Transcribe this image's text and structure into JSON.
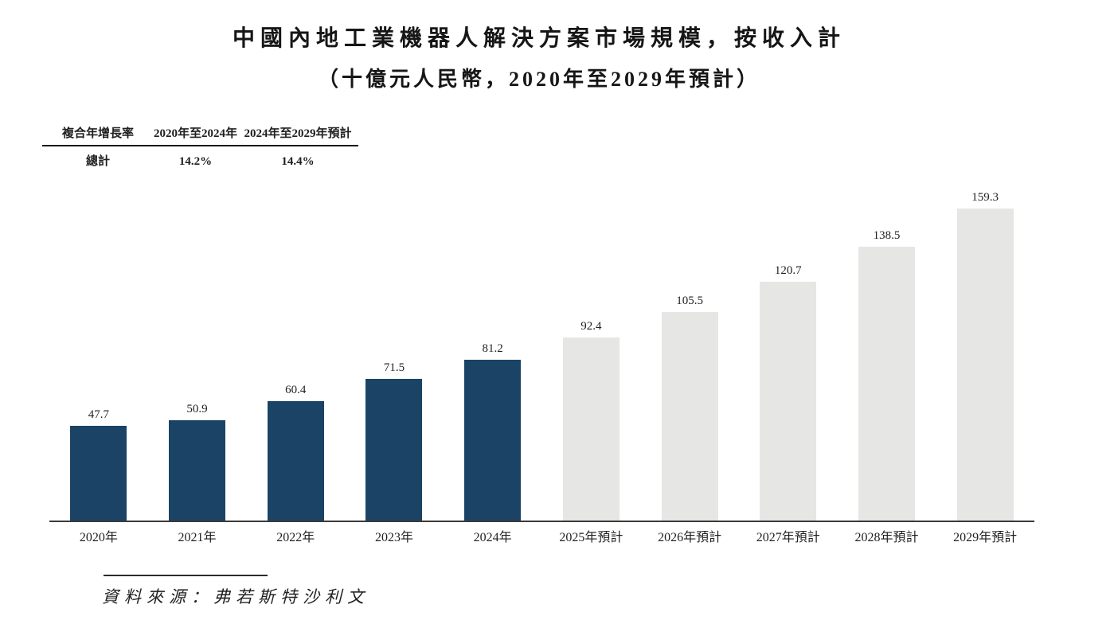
{
  "title": {
    "line1": "中國內地工業機器人解決方案市場規模，按收入計",
    "line2": "（十億元人民幣，2020年至2029年預計）"
  },
  "cagr_table": {
    "col_headers": [
      "複合年增長率",
      "2020年至2024年",
      "2024年至2029年預計"
    ],
    "rows": [
      {
        "label": "總計",
        "values": [
          "14.2%",
          "14.4%"
        ]
      }
    ]
  },
  "chart_data": {
    "type": "bar",
    "title": "中國內地工業機器人解決方案市場規模，按收入計",
    "subtitle": "（十億元人民幣，2020年至2029年預計）",
    "categories": [
      "2020年",
      "2021年",
      "2022年",
      "2023年",
      "2024年",
      "2025年預計",
      "2026年預計",
      "2027年預計",
      "2028年預計",
      "2029年預計"
    ],
    "values": [
      47.7,
      50.9,
      60.4,
      71.5,
      81.2,
      92.4,
      105.5,
      120.7,
      138.5,
      159.3
    ],
    "actual_bar_count": 5,
    "colors": {
      "actual": "#1b4365",
      "forecast": "#e6e6e4"
    },
    "xlabel": "",
    "ylabel": "十億元人民幣",
    "ylim": [
      0,
      165
    ],
    "grid": false,
    "legend": null
  },
  "source": {
    "text": "資料來源：弗若斯特沙利文"
  }
}
